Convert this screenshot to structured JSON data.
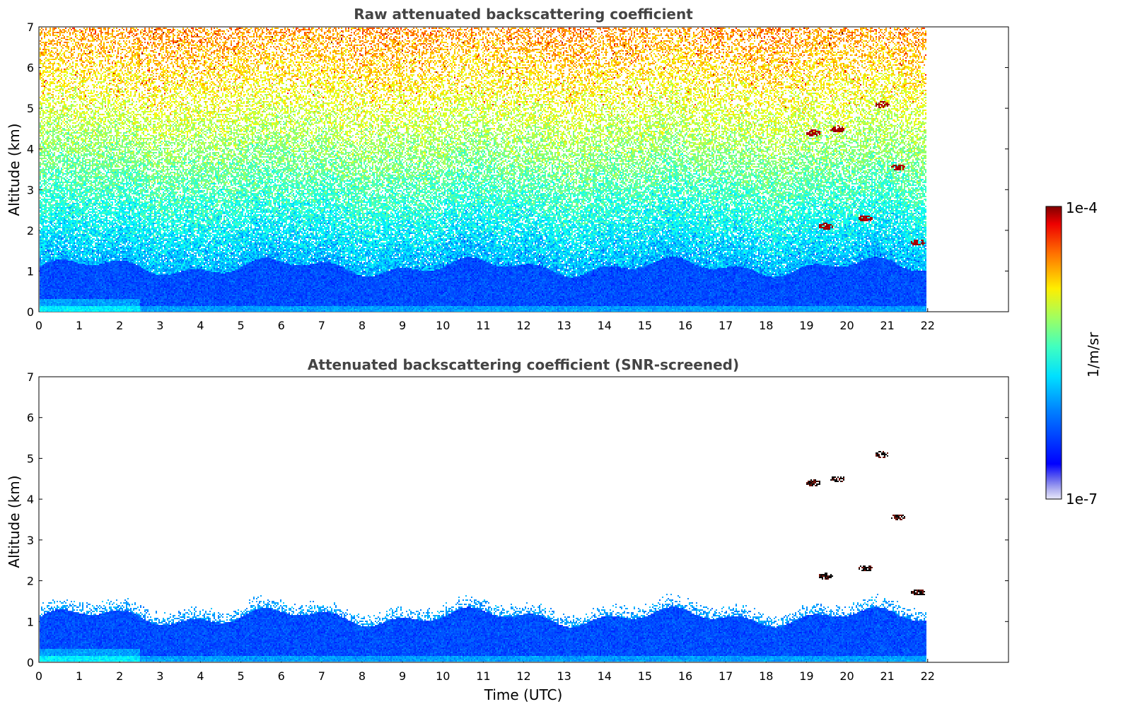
{
  "chart_data": [
    {
      "type": "heatmap",
      "title": "Raw attenuated backscattering coefficient",
      "xlabel": "",
      "ylabel": "Altitude (km)",
      "xlim": [
        0,
        24
      ],
      "ylim": [
        0,
        7
      ],
      "data_time_range": [
        0,
        22
      ],
      "xticks": [
        "0",
        "1",
        "2",
        "3",
        "4",
        "5",
        "6",
        "7",
        "8",
        "9",
        "10",
        "11",
        "12",
        "13",
        "14",
        "15",
        "16",
        "17",
        "18",
        "19",
        "20",
        "21",
        "22"
      ],
      "yticks": [
        "0",
        "1",
        "2",
        "3",
        "4",
        "5",
        "6",
        "7"
      ],
      "screened": false,
      "features": [
        {
          "kind": "boundary_layer",
          "top_km": 1.1
        },
        {
          "kind": "cloud",
          "time": 19.2,
          "altitude_km": 4.4
        },
        {
          "kind": "cloud",
          "time": 19.8,
          "altitude_km": 4.5
        },
        {
          "kind": "cloud",
          "time": 20.9,
          "altitude_km": 5.1
        },
        {
          "kind": "cloud",
          "time": 21.3,
          "altitude_km": 3.55
        },
        {
          "kind": "cloud",
          "time": 19.5,
          "altitude_km": 2.1
        },
        {
          "kind": "cloud",
          "time": 20.5,
          "altitude_km": 2.3
        },
        {
          "kind": "cloud",
          "time": 21.8,
          "altitude_km": 1.7
        }
      ]
    },
    {
      "type": "heatmap",
      "title": "Attenuated backscattering coefficient (SNR-screened)",
      "xlabel": "Time (UTC)",
      "ylabel": "Altitude (km)",
      "xlim": [
        0,
        24
      ],
      "ylim": [
        0,
        7
      ],
      "data_time_range": [
        0,
        22
      ],
      "xticks": [
        "0",
        "1",
        "2",
        "3",
        "4",
        "5",
        "6",
        "7",
        "8",
        "9",
        "10",
        "11",
        "12",
        "13",
        "14",
        "15",
        "16",
        "17",
        "18",
        "19",
        "20",
        "21",
        "22"
      ],
      "yticks": [
        "0",
        "1",
        "2",
        "3",
        "4",
        "5",
        "6",
        "7"
      ],
      "screened": true,
      "features": [
        {
          "kind": "boundary_layer",
          "top_km": 1.1
        },
        {
          "kind": "cloud",
          "time": 19.2,
          "altitude_km": 4.4
        },
        {
          "kind": "cloud",
          "time": 19.8,
          "altitude_km": 4.5
        },
        {
          "kind": "cloud",
          "time": 20.9,
          "altitude_km": 5.1
        },
        {
          "kind": "cloud",
          "time": 21.3,
          "altitude_km": 3.55
        },
        {
          "kind": "cloud",
          "time": 19.5,
          "altitude_km": 2.1
        },
        {
          "kind": "cloud",
          "time": 20.5,
          "altitude_km": 2.3
        },
        {
          "kind": "cloud",
          "time": 21.8,
          "altitude_km": 1.7
        }
      ]
    }
  ],
  "colorbar": {
    "label": "1/m/sr",
    "max_label": "1e-4",
    "min_label": "1e-7",
    "scale": "log",
    "colormap": "jet"
  }
}
